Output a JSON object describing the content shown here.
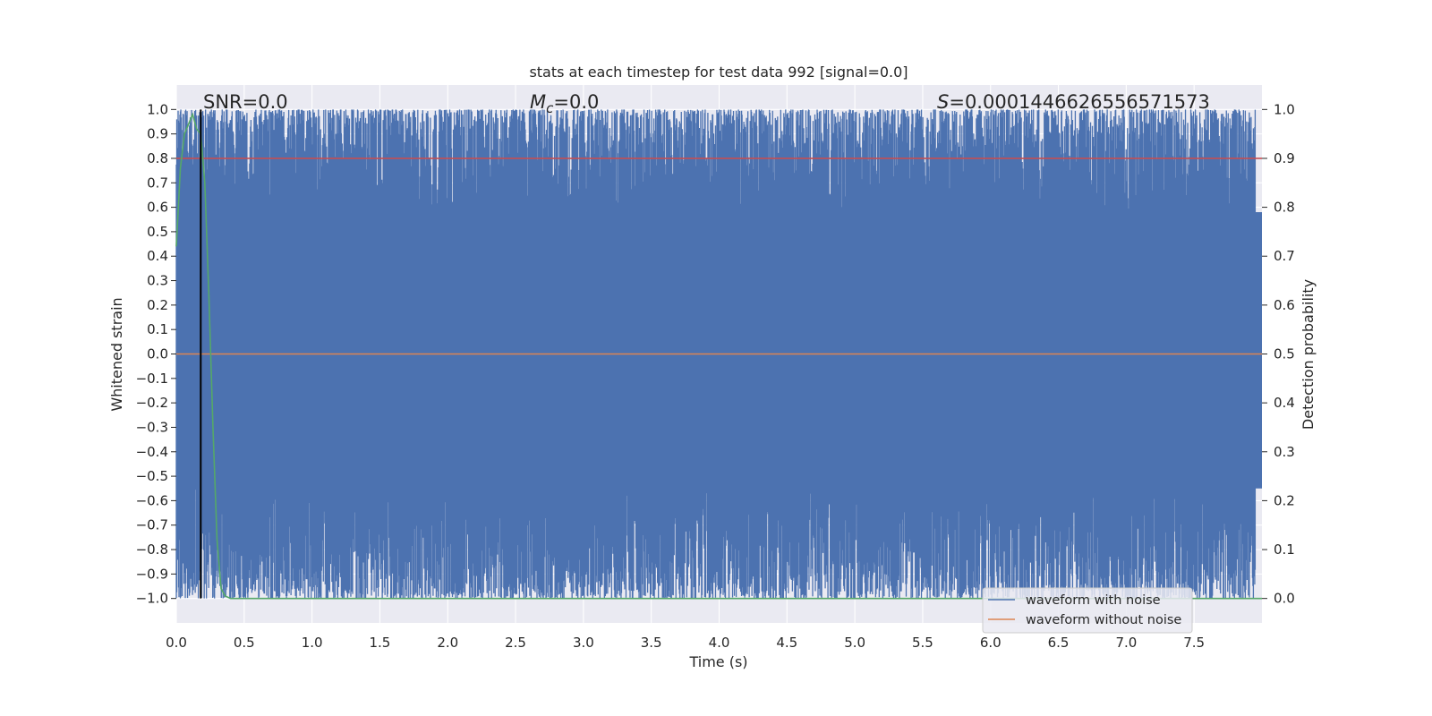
{
  "chart_data": {
    "type": "line",
    "title": "stats at each timestep for test data 992 [signal=0.0]",
    "xlabel": "Time (s)",
    "ylabel": "Whitened strain",
    "y2label": "Detection probability",
    "xlim": [
      0.0,
      8.0
    ],
    "ylim": [
      -1.1,
      1.1
    ],
    "y2lim": [
      -0.05,
      1.05
    ],
    "xticks": [
      "0.0",
      "0.5",
      "1.0",
      "1.5",
      "2.0",
      "2.5",
      "3.0",
      "3.5",
      "4.0",
      "4.5",
      "5.0",
      "5.5",
      "6.0",
      "6.5",
      "7.0",
      "7.5"
    ],
    "yticks": [
      "1.0",
      "0.9",
      "0.8",
      "0.7",
      "0.6",
      "0.5",
      "0.4",
      "0.3",
      "0.2",
      "0.1",
      "0.0",
      "−0.1",
      "−0.2",
      "−0.3",
      "−0.4",
      "−0.5",
      "−0.6",
      "−0.7",
      "−0.8",
      "−0.9",
      "−1.0"
    ],
    "y2ticks": [
      "1.0",
      "0.9",
      "0.8",
      "0.7",
      "0.6",
      "0.5",
      "0.4",
      "0.3",
      "0.2",
      "0.1",
      "0.0"
    ],
    "grid": true,
    "legend_position": "lower right",
    "annotations": {
      "snr": "SNR=0.0",
      "mc_symbol": "M",
      "mc_sub": "c",
      "mc_value": "=0.0",
      "s_symbol": "S",
      "s_value": "=0.0001446626556571573"
    },
    "series": [
      {
        "name": "waveform with noise",
        "axis": "left",
        "color": "#4c72b0",
        "description": "dense noise between approximately -1.0 and 1.0 over 0.0 to 8.0 s",
        "range": [
          -1.0,
          1.0
        ]
      },
      {
        "name": "waveform without noise",
        "axis": "left",
        "color": "#dd8452",
        "x": [
          0.0,
          8.0
        ],
        "y": [
          0.0,
          0.0
        ]
      },
      {
        "axis": "right",
        "color": "#c44e52",
        "x": [
          0.0,
          8.0
        ],
        "y": [
          0.9,
          0.9
        ]
      },
      {
        "axis": "right",
        "color": "#55a868",
        "x": [
          0.0,
          0.03,
          0.06,
          0.09,
          0.12,
          0.15,
          0.18,
          0.21,
          0.24,
          0.27,
          0.3,
          0.33,
          0.36,
          0.4,
          0.5,
          8.0
        ],
        "y": [
          0.72,
          0.88,
          0.95,
          0.97,
          0.99,
          0.96,
          0.95,
          0.85,
          0.62,
          0.35,
          0.12,
          0.02,
          0.005,
          0.0,
          0.0,
          0.0
        ]
      },
      {
        "axis": "left",
        "color": "#000000",
        "type": "vline",
        "x": 0.18
      }
    ]
  }
}
